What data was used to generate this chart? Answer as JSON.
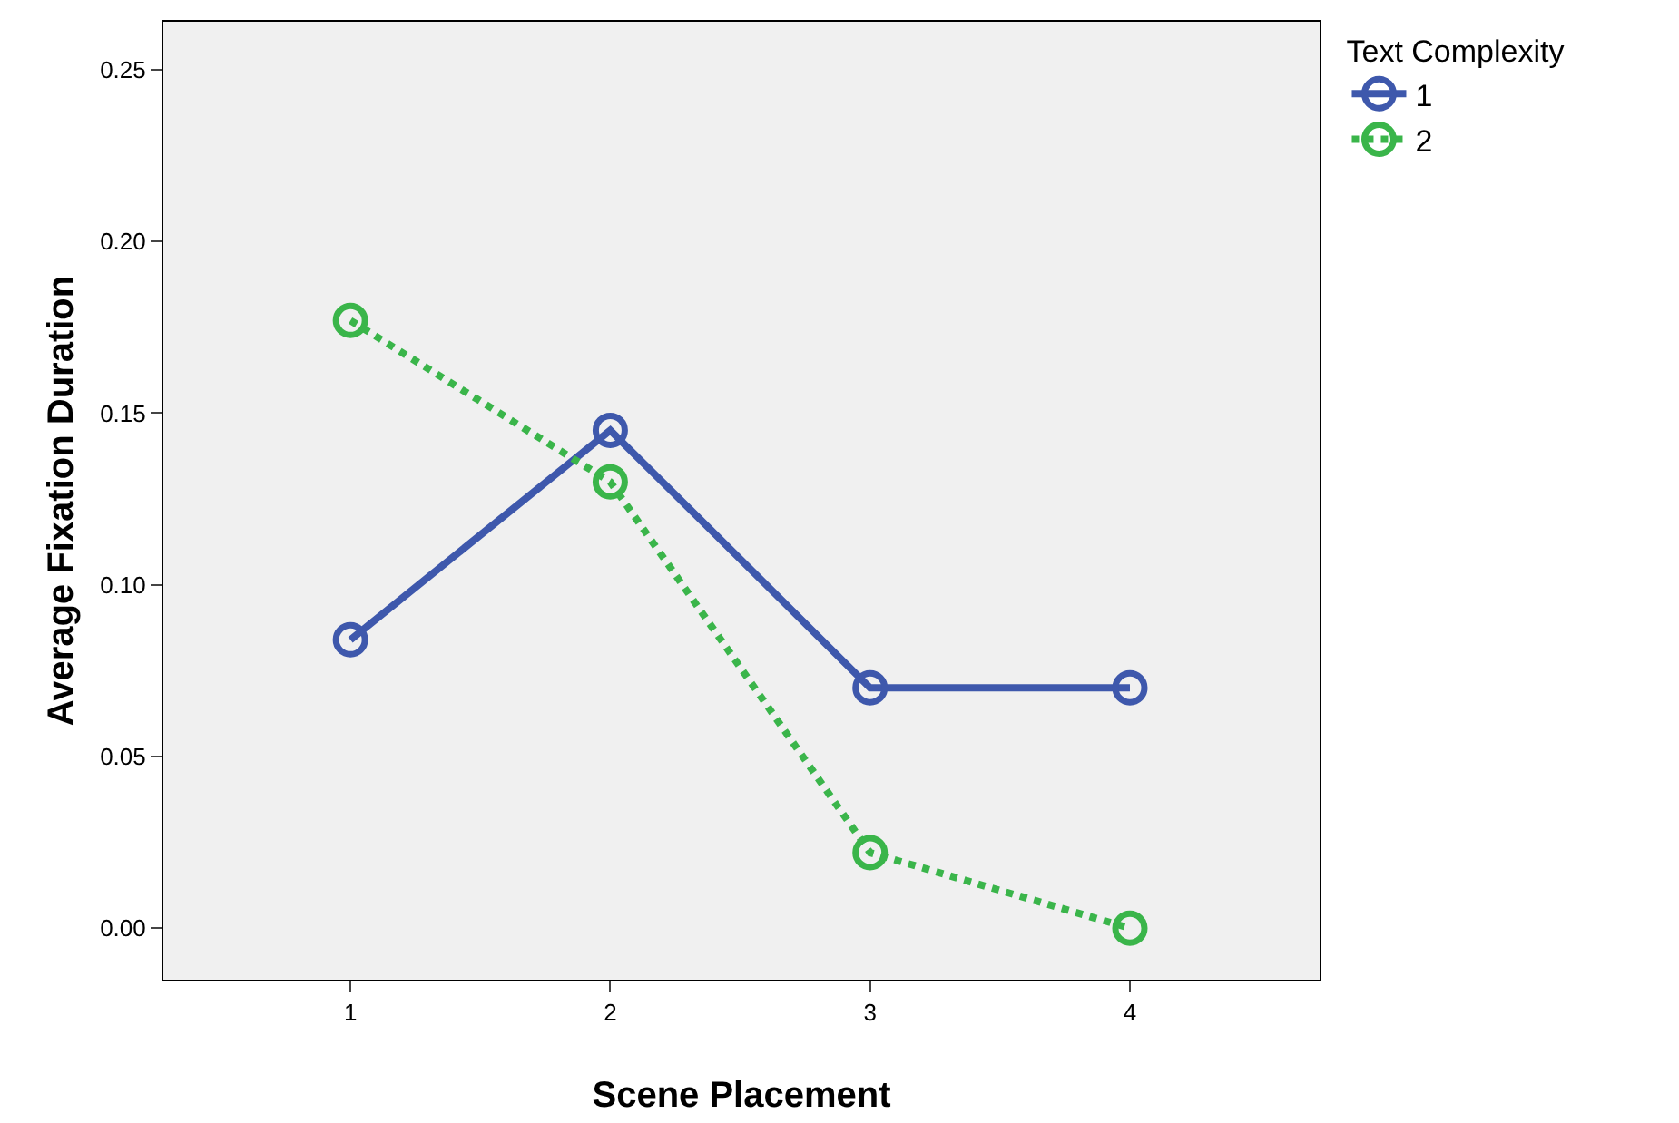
{
  "chart_data": {
    "type": "line",
    "xlabel": "Scene Placement",
    "ylabel": "Average Fixation Duration",
    "legend_title": "Text Complexity",
    "x": [
      1,
      2,
      3,
      4
    ],
    "xlim": [
      0.28,
      4.73
    ],
    "xticks": [
      1,
      2,
      3,
      4
    ],
    "ylim": [
      -0.015,
      0.264
    ],
    "yticks": [
      {
        "value": 0,
        "label": "0.00"
      },
      {
        "value": 0.05,
        "label": "0.05"
      },
      {
        "value": 0.1,
        "label": "0.10"
      },
      {
        "value": 0.15,
        "label": "0.15"
      },
      {
        "value": 0.2,
        "label": "0.20"
      },
      {
        "value": 0.25,
        "label": "0.25"
      }
    ],
    "series": [
      {
        "name": "1",
        "color": "#3e58ac",
        "values": [
          0.084,
          0.145,
          0.07,
          0.07
        ],
        "line_style": "solid"
      },
      {
        "name": "2",
        "color": "#3ab54a",
        "values": [
          0.177,
          0.13,
          0.022,
          0.0
        ],
        "line_style": "dotted"
      }
    ],
    "marker": "circle",
    "grid": false,
    "legend": "top right"
  }
}
